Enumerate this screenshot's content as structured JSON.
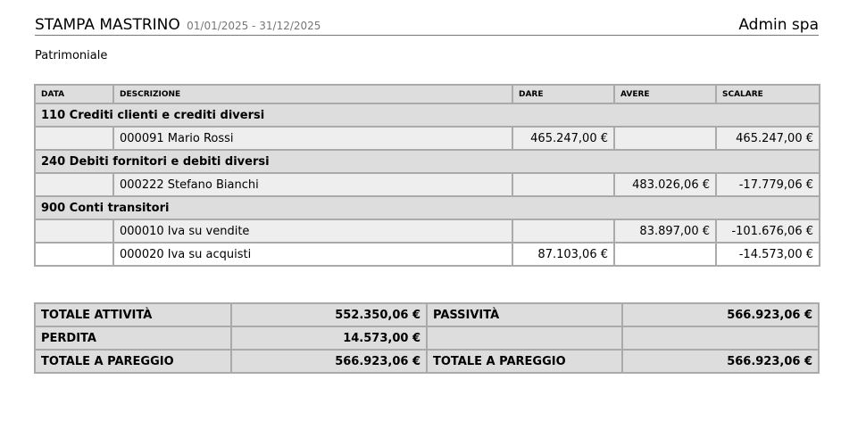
{
  "header": {
    "title": "STAMPA MASTRINO",
    "period": "01/01/2025 - 31/12/2025",
    "company": "Admin spa"
  },
  "section": "Patrimoniale",
  "columns": [
    "DATA",
    "DESCRIZIONE",
    "DARE",
    "AVERE",
    "SCALARE"
  ],
  "groups": [
    {
      "title": "110 Crediti clienti e crediti diversi",
      "rows": [
        {
          "data": "",
          "descrizione": "000091 Mario Rossi",
          "dare": "465.247,00 €",
          "avere": "",
          "scalare": "465.247,00 €"
        }
      ]
    },
    {
      "title": "240 Debiti fornitori e debiti diversi",
      "rows": [
        {
          "data": "",
          "descrizione": "000222 Stefano Bianchi",
          "dare": "",
          "avere": "483.026,06 €",
          "scalare": "-17.779,06 €"
        }
      ]
    },
    {
      "title": "900 Conti transitori",
      "rows": [
        {
          "data": "",
          "descrizione": "000010 Iva su vendite",
          "dare": "",
          "avere": "83.897,00 €",
          "scalare": "-101.676,06 €"
        },
        {
          "data": "",
          "descrizione": "000020 Iva su acquisti",
          "dare": "87.103,06 €",
          "avere": "",
          "scalare": "-14.573,00 €"
        }
      ]
    }
  ],
  "totals": [
    {
      "label1": "TOTALE ATTIVITÀ",
      "value1": "552.350,06 €",
      "label2": "PASSIVITÀ",
      "value2": "566.923,06 €"
    },
    {
      "label1": "PERDITA",
      "value1": "14.573,00 €",
      "label2": "",
      "value2": ""
    },
    {
      "label1": "TOTALE A PAREGGIO",
      "value1": "566.923,06 €",
      "label2": "TOTALE A PAREGGIO",
      "value2": "566.923,06 €"
    }
  ]
}
